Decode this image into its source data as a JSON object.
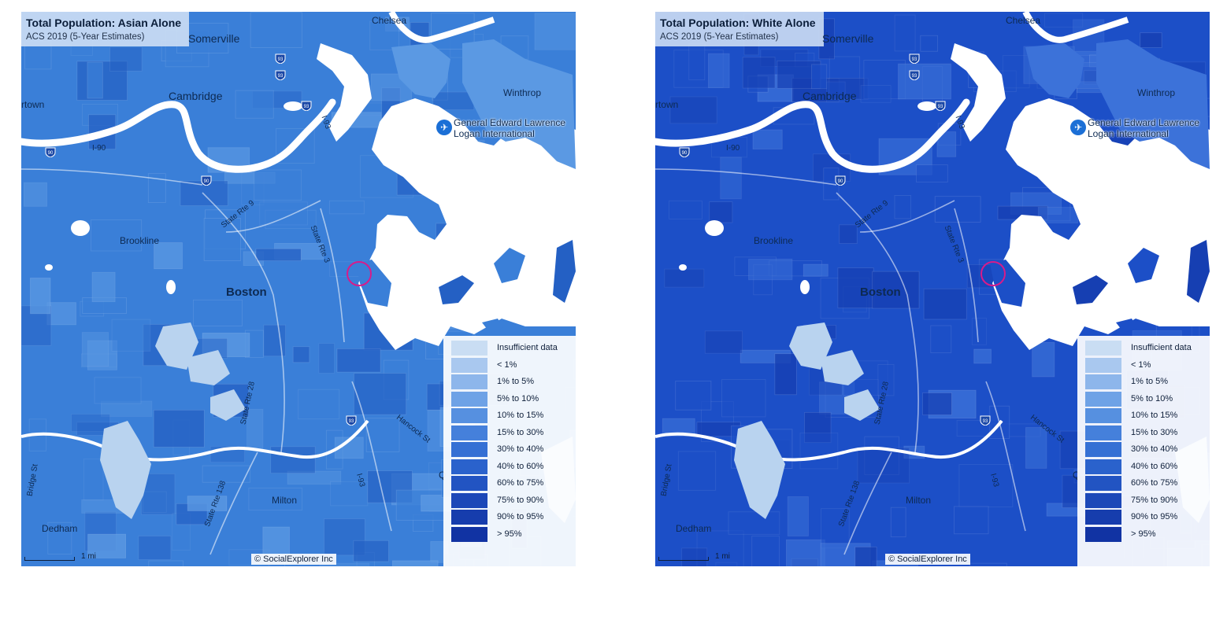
{
  "maps": [
    {
      "id": "asian",
      "title": "Total Population: Asian Alone",
      "subtitle": "ACS 2019 (5-Year Estimates)",
      "colors": {
        "base": "#3a7fd8",
        "dark": "#2460c4",
        "light": "#5b99e3",
        "pale": "#b9d3ef"
      }
    },
    {
      "id": "white",
      "title": "Total Population: White Alone",
      "subtitle": "ACS 2019 (5-Year Estimates)",
      "colors": {
        "base": "#1c4fc7",
        "dark": "#163fb2",
        "light": "#3c72d9",
        "pale": "#b9d3ef"
      }
    }
  ],
  "places": {
    "somerville": "Somerville",
    "chelsea": "Chelsea",
    "cambridge": "Cambridge",
    "town": "rtown",
    "winthrop": "Winthrop",
    "brookline": "Brookline",
    "boston": "Boston",
    "milton": "Milton",
    "dedham": "Dedham",
    "airport_line1": "General Edward Lawrence",
    "airport_line2": "Logan International",
    "q": "Q"
  },
  "roads": {
    "i90": "I-90",
    "rte9": "State Rte 9",
    "rte3": "State Rte 3",
    "rte28": "State Rte 28",
    "rte138": "State Rte 138",
    "i93": "I-93",
    "i93b": "I-93",
    "bridge": "Bridge St",
    "granite": "Hancock St"
  },
  "shields": [
    "93",
    "93",
    "93",
    "90",
    "90",
    "93"
  ],
  "legend": [
    {
      "label": "Insufficient data",
      "color": "#c9ddf3"
    },
    {
      "label": "< 1%",
      "color": "#a9c8ef"
    },
    {
      "label": "1% to 5%",
      "color": "#8db6eb"
    },
    {
      "label": "5% to 10%",
      "color": "#6ea2e6"
    },
    {
      "label": "10% to 15%",
      "color": "#5690e0"
    },
    {
      "label": "15% to 30%",
      "color": "#4580db"
    },
    {
      "label": "30% to 40%",
      "color": "#3570d4"
    },
    {
      "label": "40% to 60%",
      "color": "#2a62cc"
    },
    {
      "label": "60% to 75%",
      "color": "#2254c2"
    },
    {
      "label": "75% to 90%",
      "color": "#1c48b8"
    },
    {
      "label": "90% to 95%",
      "color": "#163dad"
    },
    {
      "label": "> 95%",
      "color": "#1133a3"
    }
  ],
  "credit": "© SocialExplorer Inc",
  "scale_label": "1 mi"
}
